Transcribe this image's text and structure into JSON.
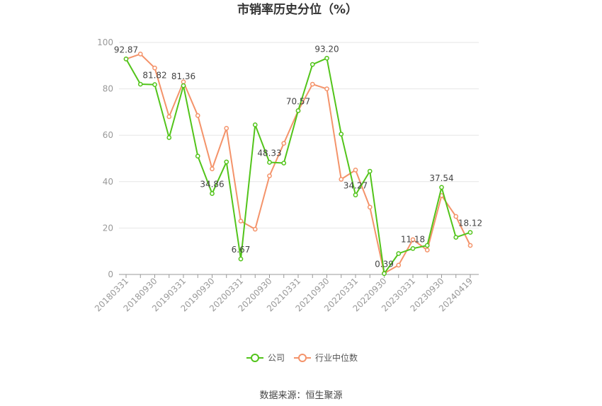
{
  "chart_data": {
    "type": "line",
    "title": "市销率历史分位（%）",
    "ylim": [
      0,
      100
    ],
    "yticks": [
      0,
      20,
      40,
      60,
      80,
      100
    ],
    "x_tick_labels": [
      "20180331",
      "20180930",
      "20190331",
      "20190930",
      "20200331",
      "20200930",
      "20210331",
      "20210930",
      "20220331",
      "20220930",
      "20230331",
      "20230930",
      "20240419"
    ],
    "grid": true,
    "legend": "bottom",
    "series": [
      {
        "name": "公司",
        "color": "#52c41a",
        "values": [
          92.87,
          82.0,
          81.82,
          59.0,
          81.36,
          51.0,
          34.86,
          48.5,
          6.67,
          64.5,
          48.33,
          48.0,
          70.57,
          90.5,
          93.2,
          60.5,
          34.27,
          44.5,
          0.39,
          9.0,
          11.18,
          12.5,
          37.54,
          16.0,
          18.12
        ],
        "labels": {
          "0": "92.87",
          "2": "81.82",
          "4": "81.36",
          "6": "34.86",
          "8": "6.67",
          "10": "48.33",
          "12": "70.57",
          "14": "93.20",
          "16": "34.27",
          "18": "0.39",
          "20": "11.18",
          "22": "37.54",
          "24": "18.12"
        }
      },
      {
        "name": "行业中位数",
        "color": "#f4936a",
        "values": [
          92.87,
          95.0,
          89.0,
          68.0,
          83.0,
          68.5,
          45.5,
          63.0,
          23.0,
          19.5,
          42.5,
          56.5,
          70.57,
          82.0,
          80.0,
          41.0,
          45.0,
          29.0,
          0.5,
          4.0,
          15.0,
          10.5,
          34.0,
          25.0,
          12.5
        ]
      }
    ]
  },
  "source_text": "数据来源：恒生聚源"
}
